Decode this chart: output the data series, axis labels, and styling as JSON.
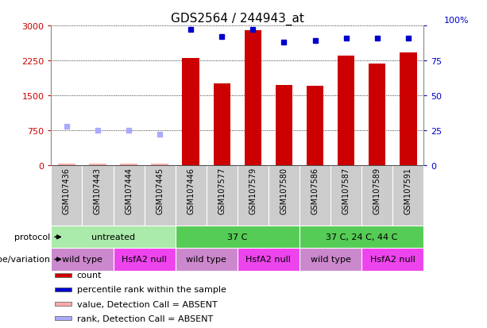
{
  "title": "GDS2564 / 244943_at",
  "samples": [
    "GSM107436",
    "GSM107443",
    "GSM107444",
    "GSM107445",
    "GSM107446",
    "GSM107577",
    "GSM107579",
    "GSM107580",
    "GSM107586",
    "GSM107587",
    "GSM107589",
    "GSM107591"
  ],
  "counts": [
    30,
    30,
    30,
    30,
    2300,
    1750,
    2900,
    1720,
    1700,
    2350,
    2180,
    2420
  ],
  "percentile_ranks": [
    28,
    25,
    25,
    22,
    97,
    92,
    97,
    88,
    89,
    91,
    91,
    91
  ],
  "absent_flags": [
    true,
    true,
    true,
    true,
    false,
    false,
    false,
    false,
    false,
    false,
    false,
    false
  ],
  "ylim_left": [
    0,
    3000
  ],
  "ylim_right": [
    0,
    100
  ],
  "yticks_left": [
    0,
    750,
    1500,
    2250,
    3000
  ],
  "yticks_right": [
    0,
    25,
    50,
    75,
    100
  ],
  "left_color": "#cc0000",
  "right_color": "#0000cc",
  "bar_color": "#cc0000",
  "dot_color": "#0000cc",
  "absent_bar_color": "#ffaaaa",
  "absent_dot_color": "#aaaaff",
  "protocol_groups": [
    {
      "label": "untreated",
      "start": 0,
      "end": 4,
      "color": "#aaeaaa"
    },
    {
      "label": "37 C",
      "start": 4,
      "end": 8,
      "color": "#55cc55"
    },
    {
      "label": "37 C, 24 C, 44 C",
      "start": 8,
      "end": 12,
      "color": "#55cc55"
    }
  ],
  "genotype_groups": [
    {
      "label": "wild type",
      "start": 0,
      "end": 2,
      "color": "#cc88cc"
    },
    {
      "label": "HsfA2 null",
      "start": 2,
      "end": 4,
      "color": "#ee44ee"
    },
    {
      "label": "wild type",
      "start": 4,
      "end": 6,
      "color": "#cc88cc"
    },
    {
      "label": "HsfA2 null",
      "start": 6,
      "end": 8,
      "color": "#ee44ee"
    },
    {
      "label": "wild type",
      "start": 8,
      "end": 10,
      "color": "#cc88cc"
    },
    {
      "label": "HsfA2 null",
      "start": 10,
      "end": 12,
      "color": "#ee44ee"
    }
  ],
  "protocol_row_label": "protocol",
  "genotype_row_label": "genotype/variation",
  "legend_items": [
    {
      "label": "count",
      "color": "#cc0000"
    },
    {
      "label": "percentile rank within the sample",
      "color": "#0000cc"
    },
    {
      "label": "value, Detection Call = ABSENT",
      "color": "#ffaaaa"
    },
    {
      "label": "rank, Detection Call = ABSENT",
      "color": "#aaaaff"
    }
  ],
  "sample_label_bg": "#cccccc"
}
